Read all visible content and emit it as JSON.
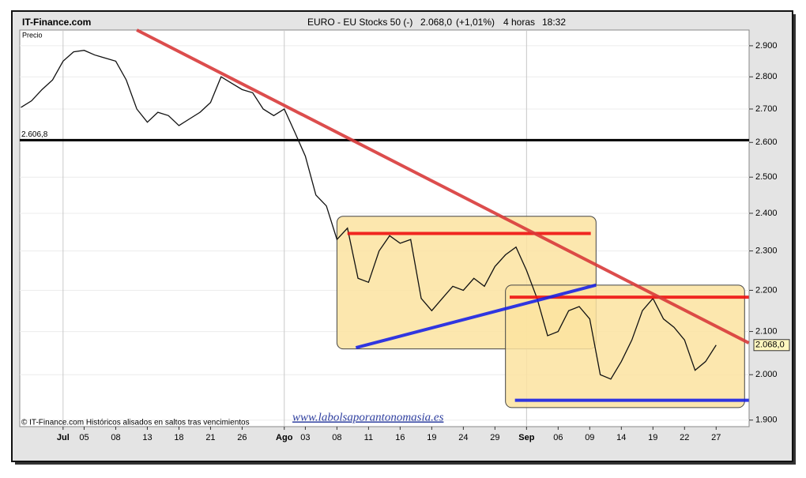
{
  "chart_data": {
    "type": "line",
    "source": "IT-Finance.com",
    "title": "EURO - EU Stocks 50 (-)",
    "price": "2.068,0",
    "change": "(+1,01%)",
    "interval": "4 horas",
    "time": "18:32",
    "y_label": "Precio",
    "footnote": "© IT-Finance.com  Históricos alisados en saltos tras vencimientos",
    "watermark": "www.labolsaporantonomasia.es",
    "categories": [
      null,
      null,
      null,
      null,
      "Jul",
      null,
      "05",
      null,
      null,
      "08",
      null,
      null,
      "13",
      null,
      null,
      "18",
      null,
      null,
      "21",
      null,
      null,
      "26",
      null,
      null,
      null,
      "Ago",
      null,
      "03",
      null,
      null,
      "08",
      null,
      null,
      "11",
      null,
      null,
      "16",
      null,
      null,
      "19",
      null,
      null,
      "24",
      null,
      null,
      "29",
      null,
      null,
      "Sep",
      null,
      null,
      "06",
      null,
      null,
      "09",
      null,
      null,
      "14",
      null,
      null,
      "19",
      null,
      null,
      "22",
      null,
      null,
      "27"
    ],
    "color": "#111111",
    "values": [
      2705,
      2725,
      2760,
      2790,
      2850,
      2880,
      2885,
      2870,
      2860,
      2850,
      2790,
      2700,
      2660,
      2690,
      2680,
      2650,
      2670,
      2690,
      2720,
      2800,
      2780,
      2760,
      2750,
      2700,
      2680,
      2700,
      2630,
      2560,
      2450,
      2420,
      2330,
      2360,
      2230,
      2220,
      2300,
      2340,
      2320,
      2330,
      2180,
      2150,
      2180,
      2210,
      2200,
      2230,
      2210,
      2260,
      2290,
      2310,
      2250,
      2180,
      2090,
      2100,
      2150,
      2160,
      2130,
      2000,
      1990,
      2030,
      2080,
      2150,
      2180,
      2130,
      2110,
      2080,
      2010,
      2030,
      2068
    ],
    "last_price": {
      "value": 2068,
      "label": "2.068,0"
    },
    "ylim": [
      1886,
      2952
    ],
    "log_y": true,
    "yticks": [
      {
        "value": 1900,
        "label": "1.900"
      },
      {
        "value": 2000,
        "label": "2.000"
      },
      {
        "value": 2100,
        "label": "2.100"
      },
      {
        "value": 2200,
        "label": "2.200"
      },
      {
        "value": 2300,
        "label": "2.300"
      },
      {
        "value": 2400,
        "label": "2.400"
      },
      {
        "value": 2500,
        "label": "2.500"
      },
      {
        "value": 2600,
        "label": "2.600"
      },
      {
        "value": 2700,
        "label": "2.700"
      },
      {
        "value": 2800,
        "label": "2.800"
      },
      {
        "value": 2900,
        "label": "2.900"
      }
    ],
    "grid": true,
    "levels": [
      {
        "value": 2606.8,
        "label": "2.606,8",
        "color": "#000000"
      }
    ],
    "zones": [
      {
        "x": [
          30,
          54.6
        ],
        "y": [
          2059,
          2392
        ],
        "color": "#fbe3a0"
      },
      {
        "x": [
          46,
          68.7
        ],
        "y": [
          1927,
          2213
        ],
        "color": "#fbe3a0"
      }
    ],
    "trendlines": [
      {
        "x": [
          31,
          54.1
        ],
        "y": [
          2346,
          2346
        ],
        "color": "#ee1111"
      },
      {
        "x": [
          46.4,
          69.1
        ],
        "y": [
          2183,
          2183
        ],
        "color": "#ee1111"
      },
      {
        "x": [
          46.9,
          69.1
        ],
        "y": [
          1943,
          1943
        ],
        "color": "#1a22e6"
      },
      {
        "x": [
          31.8,
          54.6
        ],
        "y": [
          2062,
          2213
        ],
        "color": "#1a22e6"
      },
      {
        "x": [
          11,
          69.1
        ],
        "y": [
          2952,
          2073
        ],
        "color": "#d83a3a"
      }
    ]
  }
}
